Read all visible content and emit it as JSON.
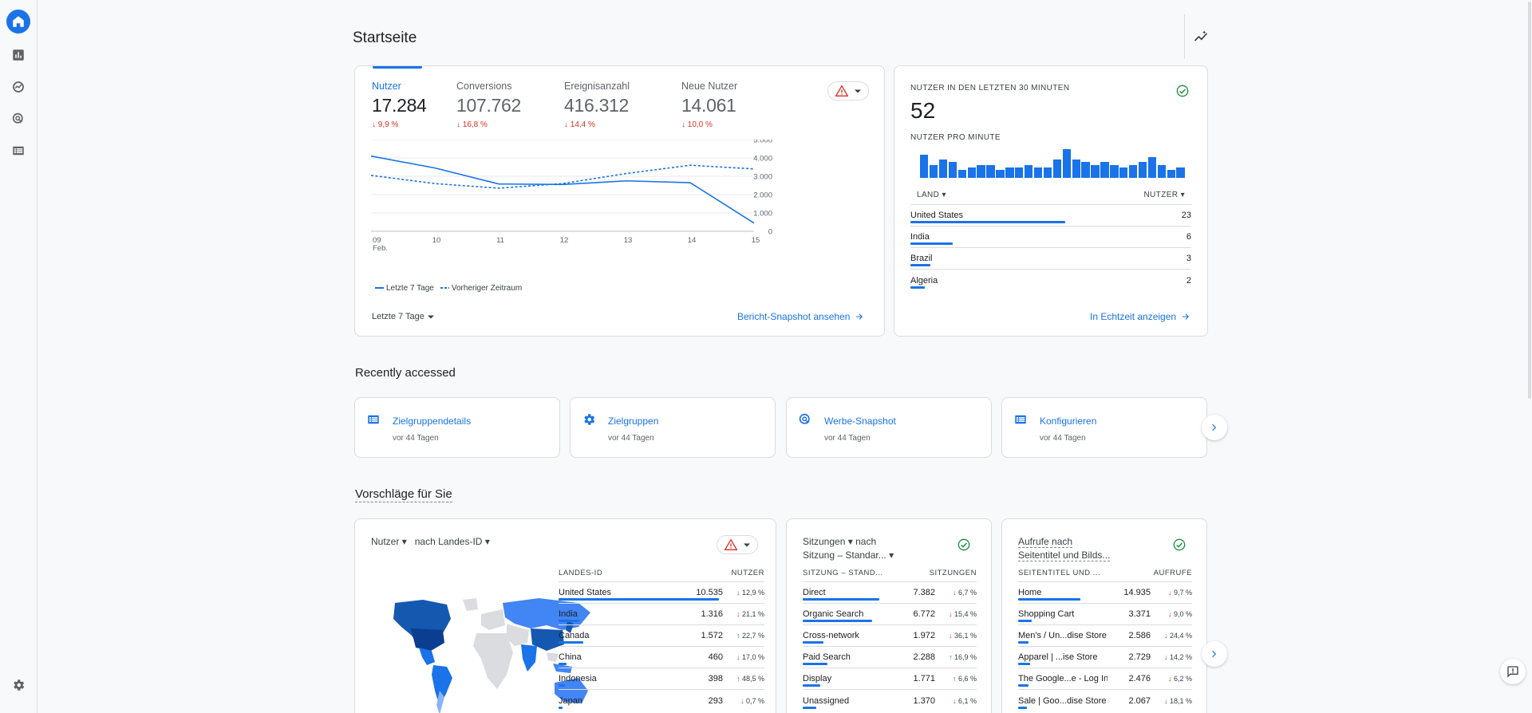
{
  "page": {
    "title": "Startseite"
  },
  "sidebar": {
    "items": [
      {
        "icon": "home-icon"
      },
      {
        "icon": "reports-icon"
      },
      {
        "icon": "explore-icon"
      },
      {
        "icon": "advertising-icon"
      },
      {
        "icon": "configure-icon"
      }
    ],
    "settings_icon": "gear-icon"
  },
  "overview": {
    "metrics": [
      {
        "label": "Nutzer",
        "value": "17.284",
        "delta": "9,9 %"
      },
      {
        "label": "Conversions",
        "value": "107.762",
        "delta": "16,8 %"
      },
      {
        "label": "Ereignisanzahl",
        "value": "416.312",
        "delta": "14,4 %"
      },
      {
        "label": "Neue Nutzer",
        "value": "14.061",
        "delta": "10,0 %"
      }
    ],
    "legend_current": "Letzte 7 Tage",
    "legend_previous": "Vorheriger Zeitraum",
    "date_range": "Letzte 7 Tage",
    "link": "Bericht-Snapshot ansehen"
  },
  "chart_data": {
    "type": "line",
    "categories": [
      "09",
      "10",
      "11",
      "12",
      "13",
      "14",
      "15"
    ],
    "x_sublabel": "Feb.",
    "y_ticks": [
      "5.000",
      "4.000",
      "3.000",
      "2.000",
      "1.000",
      "0"
    ],
    "ylim": [
      0,
      5000
    ],
    "series": [
      {
        "name": "Letzte 7 Tage",
        "style": "solid",
        "values": [
          4100,
          3450,
          2580,
          2550,
          2750,
          2650,
          450
        ]
      },
      {
        "name": "Vorheriger Zeitraum",
        "style": "dashed",
        "values": [
          3050,
          2600,
          2350,
          2600,
          3150,
          3600,
          3400
        ]
      }
    ]
  },
  "realtime": {
    "title": "NUTZER IN DEN LETZTEN 30 MINUTEN",
    "value": "52",
    "subtitle": "NUTZER PRO MINUTE",
    "bars": [
      9,
      5,
      7,
      6,
      3,
      4,
      5,
      5,
      3,
      4,
      4,
      5,
      4,
      4,
      7,
      11,
      7,
      6,
      5,
      6,
      5,
      4,
      5,
      6,
      8,
      5,
      3,
      4
    ],
    "col_country": "LAND",
    "col_users": "NUTZER",
    "rows": [
      {
        "country": "United States",
        "users": "23",
        "share": 0.55
      },
      {
        "country": "India",
        "users": "6",
        "share": 0.15
      },
      {
        "country": "Brazil",
        "users": "3",
        "share": 0.07
      },
      {
        "country": "Algeria",
        "users": "2",
        "share": 0.05
      }
    ],
    "link": "In Echtzeit anzeigen"
  },
  "recent": {
    "title": "Recently accessed",
    "items": [
      {
        "name": "Zielgruppendetails",
        "time": "vor 44 Tagen",
        "icon": "table-icon"
      },
      {
        "name": "Zielgruppen",
        "time": "vor 44 Tagen",
        "icon": "gear-icon"
      },
      {
        "name": "Werbe-Snapshot",
        "time": "vor 44 Tagen",
        "icon": "advertising-icon"
      },
      {
        "name": "Konfigurieren",
        "time": "vor 44 Tagen",
        "icon": "table-icon"
      }
    ]
  },
  "suggestions": {
    "title": "Vorschläge für Sie",
    "card1": {
      "metric": "Nutzer",
      "dimension": "nach Landes-ID",
      "col1": "LANDES-ID",
      "col2": "NUTZER",
      "rows": [
        {
          "name": "United States",
          "value": "10.535",
          "dir": "down",
          "delta": "12,9 %",
          "share": 0.78
        },
        {
          "name": "India",
          "value": "1.316",
          "dir": "down",
          "delta": "21,1 %",
          "share": 0.1
        },
        {
          "name": "Canada",
          "value": "1.572",
          "dir": "up",
          "delta": "22,7 %",
          "share": 0.12
        },
        {
          "name": "China",
          "value": "460",
          "dir": "down",
          "delta": "17,0 %",
          "share": 0.04
        },
        {
          "name": "Indonesia",
          "value": "398",
          "dir": "up",
          "delta": "48,5 %",
          "share": 0.03
        },
        {
          "name": "Japan",
          "value": "293",
          "dir": "down",
          "delta": "0,7 %",
          "share": 0.02
        }
      ]
    },
    "card2": {
      "metric": "Sitzungen",
      "mid": "nach",
      "dimension": "Sitzung – Standar...",
      "col1": "SITZUNG – STAND...",
      "col2": "SITZUNGEN",
      "rows": [
        {
          "name": "Direct",
          "value": "7.382",
          "dir": "down",
          "delta": "6,7 %",
          "share": 0.44
        },
        {
          "name": "Organic Search",
          "value": "6.772",
          "dir": "down",
          "delta": "15,4 %",
          "share": 0.4
        },
        {
          "name": "Cross-network",
          "value": "1.972",
          "dir": "down",
          "delta": "36,1 %",
          "share": 0.12
        },
        {
          "name": "Paid Search",
          "value": "2.288",
          "dir": "up",
          "delta": "16,9 %",
          "share": 0.14
        },
        {
          "name": "Display",
          "value": "1.771",
          "dir": "up",
          "delta": "6,6 %",
          "share": 0.1
        },
        {
          "name": "Unassigned",
          "value": "1.370",
          "dir": "down",
          "delta": "6,1 %",
          "share": 0.08
        }
      ]
    },
    "card3": {
      "line1": "Aufrufe nach",
      "line2": "Seitentitel und Bilds...",
      "col1": "SEITENTITEL UND ...",
      "col2": "AUFRUFE",
      "rows": [
        {
          "name": "Home",
          "value": "14.935",
          "dir": "down",
          "delta": "9,7 %",
          "share": 0.36
        },
        {
          "name": "Shopping Cart",
          "value": "3.371",
          "dir": "down",
          "delta": "9,0 %",
          "share": 0.08
        },
        {
          "name": "Men's / Un...dise Store",
          "value": "2.586",
          "dir": "down",
          "delta": "24,4 %",
          "share": 0.06
        },
        {
          "name": "Apparel | ...ise Store",
          "value": "2.729",
          "dir": "down",
          "delta": "14,2 %",
          "share": 0.07
        },
        {
          "name": "The Google...e - Log In",
          "value": "2.476",
          "dir": "down",
          "delta": "6,2 %",
          "share": 0.06
        },
        {
          "name": "Sale | Goo...dise Store",
          "value": "2.067",
          "dir": "down",
          "delta": "18,1 %",
          "share": 0.05
        }
      ]
    }
  },
  "colors": {
    "accent": "#1a73e8",
    "negative": "#d93025",
    "positive": "#188038",
    "warning": "#e37400",
    "ok": "#1e8e3e"
  }
}
